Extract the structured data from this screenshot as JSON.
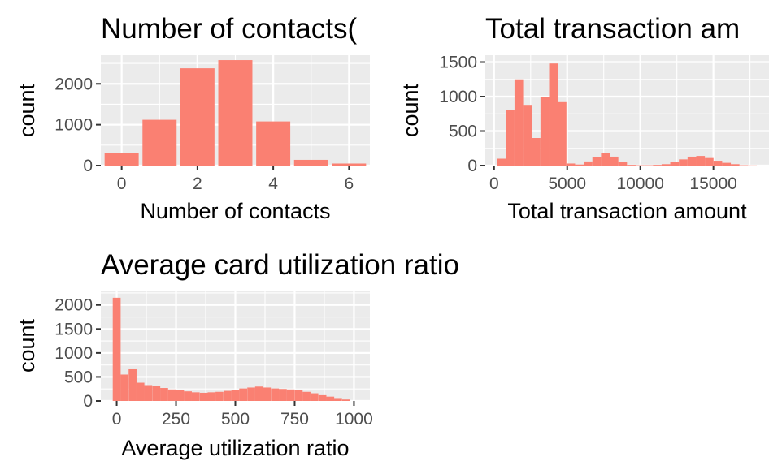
{
  "chart_data": [
    {
      "type": "bar",
      "title": "Number of contacts(",
      "xlabel": "Number of contacts",
      "ylabel": "count",
      "categories": [
        0,
        1,
        2,
        3,
        4,
        5,
        6
      ],
      "values": [
        300,
        1120,
        2380,
        2580,
        1080,
        140,
        50
      ],
      "xlim": [
        -0.55,
        6.55
      ],
      "ylim": [
        0,
        2700
      ],
      "xticks": [
        0,
        2,
        4,
        6
      ],
      "yticks": [
        0,
        1000,
        2000
      ],
      "grid": true,
      "color": "#FA8072",
      "panel_background": "#EBEBEB"
    },
    {
      "type": "bar",
      "title": "Total transaction am",
      "xlabel": "Total transaction amount",
      "ylabel": "count",
      "bin_width": 591.7,
      "bin_centers": [
        510,
        1102,
        1693,
        2285,
        2877,
        3469,
        4060,
        4652,
        5244,
        5836,
        6427,
        7019,
        7611,
        8202,
        8794,
        9386,
        9978,
        10569,
        11161,
        11753,
        12344,
        12936,
        13528,
        14120,
        14711,
        15303,
        15895,
        16486,
        17078,
        17670
      ],
      "values": [
        100,
        800,
        1250,
        880,
        400,
        1000,
        1480,
        920,
        30,
        15,
        60,
        120,
        180,
        130,
        50,
        10,
        5,
        5,
        10,
        20,
        50,
        90,
        130,
        140,
        110,
        70,
        40,
        20,
        5,
        2
      ],
      "xlim": [
        -600,
        18800
      ],
      "ylim": [
        0,
        1600
      ],
      "xticks": [
        0,
        5000,
        10000,
        15000
      ],
      "yticks": [
        0,
        500,
        1000,
        1500
      ],
      "grid": true,
      "color": "#FA8072",
      "panel_background": "#EBEBEB"
    },
    {
      "type": "bar",
      "title": "Average card utilization ratio",
      "xlabel": "Average utilization ratio",
      "ylabel": "count",
      "bin_width": 33.3,
      "bin_centers": [
        0,
        33,
        67,
        100,
        133,
        167,
        200,
        233,
        267,
        300,
        333,
        367,
        400,
        433,
        467,
        500,
        533,
        567,
        600,
        633,
        667,
        700,
        733,
        767,
        800,
        833,
        867,
        900,
        933,
        967
      ],
      "values": [
        2150,
        550,
        660,
        380,
        330,
        310,
        270,
        240,
        220,
        200,
        180,
        170,
        180,
        190,
        210,
        230,
        260,
        280,
        300,
        280,
        260,
        250,
        240,
        220,
        190,
        160,
        120,
        90,
        60,
        30
      ],
      "xlim": [
        -67,
        1067
      ],
      "ylim": [
        0,
        2300
      ],
      "xticks": [
        0,
        250,
        500,
        750,
        1000
      ],
      "yticks": [
        0,
        500,
        1000,
        1500,
        2000
      ],
      "grid": true,
      "color": "#FA8072",
      "panel_background": "#EBEBEB"
    }
  ]
}
